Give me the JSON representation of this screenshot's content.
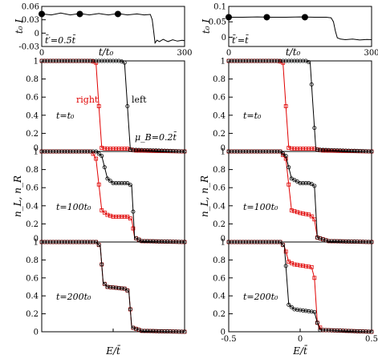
{
  "chart_data": [
    {
      "id": "top-left",
      "type": "line",
      "ylabel": "t₀ I",
      "xlabel": "t/t₀",
      "xlim": [
        0,
        300
      ],
      "ylim": [
        -0.03,
        0.06
      ],
      "xticks": [
        "0",
        "300"
      ],
      "yticks": [
        "0.06",
        "0.03",
        "0",
        "-0.03"
      ],
      "annotation": "t̄′=0.5t̄",
      "series": [
        {
          "line": [
            [
              0,
              0.043
            ],
            [
              20,
              0.041
            ],
            [
              40,
              0.045
            ],
            [
              60,
              0.041
            ],
            [
              80,
              0.044
            ],
            [
              100,
              0.041
            ],
            [
              120,
              0.044
            ],
            [
              140,
              0.041
            ],
            [
              160,
              0.044
            ],
            [
              180,
              0.041
            ],
            [
              200,
              0.043
            ],
            [
              215,
              0.041
            ],
            [
              228,
              0.042
            ],
            [
              232,
              0.03
            ],
            [
              235,
              0.005
            ],
            [
              238,
              -0.022
            ],
            [
              242,
              -0.016
            ],
            [
              247,
              -0.019
            ],
            [
              255,
              -0.014
            ],
            [
              265,
              -0.019
            ],
            [
              275,
              -0.015
            ],
            [
              285,
              -0.018
            ],
            [
              295,
              -0.016
            ],
            [
              300,
              -0.017
            ]
          ],
          "markers": [
            [
              0,
              0.043
            ],
            [
              80,
              0.043
            ],
            [
              160,
              0.043
            ]
          ]
        }
      ]
    },
    {
      "id": "top-right",
      "type": "line",
      "ylabel": "t₀ I",
      "xlabel": "t/t₀",
      "xlim": [
        0,
        300
      ],
      "ylim": [
        -0.03,
        0.1
      ],
      "xticks": [
        "0",
        "300"
      ],
      "yticks": [
        "0.1",
        "0.05",
        "0"
      ],
      "annotation": "t̄′=t̄",
      "series": [
        {
          "line": [
            [
              0,
              0.065
            ],
            [
              30,
              0.065
            ],
            [
              60,
              0.066
            ],
            [
              90,
              0.065
            ],
            [
              120,
              0.065
            ],
            [
              150,
              0.066
            ],
            [
              180,
              0.065
            ],
            [
              205,
              0.065
            ],
            [
              215,
              0.063
            ],
            [
              220,
              0.05
            ],
            [
              224,
              0.02
            ],
            [
              228,
              -0.002
            ],
            [
              235,
              -0.006
            ],
            [
              245,
              -0.008
            ],
            [
              260,
              -0.006
            ],
            [
              275,
              -0.009
            ],
            [
              290,
              -0.007
            ],
            [
              300,
              -0.008
            ]
          ],
          "markers": [
            [
              0,
              0.065
            ],
            [
              80,
              0.065
            ],
            [
              160,
              0.065
            ]
          ]
        }
      ]
    },
    {
      "id": "left-main",
      "type": "line",
      "ylabel": "n_L, n_R",
      "xlabel": "E/t̄",
      "xlim": [
        -0.5,
        0.5
      ],
      "subplots": [
        {
          "annotation": "t=t₀",
          "left": [
            [
              -0.5,
              1
            ],
            [
              0.05,
              1
            ],
            [
              0.08,
              0.98
            ],
            [
              0.1,
              0.5
            ],
            [
              0.12,
              0.02
            ],
            [
              0.5,
              0
            ]
          ],
          "right": [
            [
              -0.5,
              1
            ],
            [
              -0.15,
              1
            ],
            [
              -0.12,
              0.98
            ],
            [
              -0.1,
              0.5
            ],
            [
              -0.08,
              0.04
            ],
            [
              -0.05,
              0.03
            ],
            [
              0.1,
              0.03
            ],
            [
              0.15,
              0.01
            ],
            [
              0.5,
              0
            ]
          ]
        },
        {
          "annotation": "t=100t₀",
          "left": [
            [
              -0.5,
              1
            ],
            [
              -0.12,
              1
            ],
            [
              -0.08,
              0.95
            ],
            [
              -0.04,
              0.7
            ],
            [
              0.0,
              0.65
            ],
            [
              0.1,
              0.65
            ],
            [
              0.13,
              0.62
            ],
            [
              0.15,
              0.05
            ],
            [
              0.2,
              0.01
            ],
            [
              0.5,
              0
            ]
          ],
          "right": [
            [
              -0.5,
              1
            ],
            [
              -0.15,
              1
            ],
            [
              -0.12,
              0.92
            ],
            [
              -0.08,
              0.35
            ],
            [
              -0.04,
              0.3
            ],
            [
              0.0,
              0.28
            ],
            [
              0.1,
              0.28
            ],
            [
              0.13,
              0.25
            ],
            [
              0.15,
              0.05
            ],
            [
              0.2,
              0.01
            ],
            [
              0.5,
              0
            ]
          ]
        },
        {
          "annotation": "t=200t₀",
          "left": [
            [
              -0.5,
              1
            ],
            [
              -0.12,
              1
            ],
            [
              -0.09,
              0.95
            ],
            [
              -0.07,
              0.55
            ],
            [
              -0.04,
              0.5
            ],
            [
              0.08,
              0.48
            ],
            [
              0.11,
              0.45
            ],
            [
              0.13,
              0.05
            ],
            [
              0.2,
              0.01
            ],
            [
              0.5,
              0
            ]
          ],
          "right": [
            [
              -0.5,
              1
            ],
            [
              -0.12,
              1
            ],
            [
              -0.09,
              0.95
            ],
            [
              -0.07,
              0.55
            ],
            [
              -0.04,
              0.5
            ],
            [
              0.08,
              0.48
            ],
            [
              0.11,
              0.45
            ],
            [
              0.13,
              0.05
            ],
            [
              0.2,
              0.01
            ],
            [
              0.5,
              0
            ]
          ]
        }
      ],
      "labels": {
        "right": "right",
        "left": "left",
        "muB": "μ_B=0.2t̄"
      },
      "yticks": [
        "0",
        "0.2",
        "0.4",
        "0.6",
        "0.8",
        "1"
      ]
    },
    {
      "id": "right-main",
      "type": "line",
      "ylabel": "n_L, n_R",
      "xlabel": "E/t̄",
      "xlim": [
        -0.5,
        0.5
      ],
      "xticks": [
        "-0.5",
        "0",
        "0.5"
      ],
      "subplots": [
        {
          "annotation": "t=t₀",
          "left": [
            [
              -0.5,
              1
            ],
            [
              0.04,
              1
            ],
            [
              0.07,
              0.98
            ],
            [
              0.09,
              0.5
            ],
            [
              0.11,
              0.02
            ],
            [
              0.5,
              0
            ]
          ],
          "right": [
            [
              -0.5,
              1
            ],
            [
              -0.15,
              1
            ],
            [
              -0.12,
              0.98
            ],
            [
              -0.1,
              0.5
            ],
            [
              -0.08,
              0.04
            ],
            [
              -0.05,
              0.03
            ],
            [
              0.1,
              0.03
            ],
            [
              0.15,
              0.01
            ],
            [
              0.5,
              0
            ]
          ]
        },
        {
          "annotation": "t=100t₀",
          "left": [
            [
              -0.5,
              1
            ],
            [
              -0.14,
              1
            ],
            [
              -0.1,
              0.95
            ],
            [
              -0.06,
              0.7
            ],
            [
              0.0,
              0.65
            ],
            [
              0.07,
              0.65
            ],
            [
              0.1,
              0.62
            ],
            [
              0.12,
              0.05
            ],
            [
              0.2,
              0.01
            ],
            [
              0.5,
              0
            ]
          ],
          "right": [
            [
              -0.5,
              1
            ],
            [
              -0.14,
              1
            ],
            [
              -0.1,
              0.92
            ],
            [
              -0.06,
              0.35
            ],
            [
              0.0,
              0.32
            ],
            [
              0.07,
              0.3
            ],
            [
              0.1,
              0.25
            ],
            [
              0.12,
              0.05
            ],
            [
              0.2,
              0.01
            ],
            [
              0.5,
              0
            ]
          ]
        },
        {
          "annotation": "t=200t₀",
          "left": [
            [
              -0.5,
              1
            ],
            [
              -0.14,
              1
            ],
            [
              -0.11,
              0.95
            ],
            [
              -0.08,
              0.3
            ],
            [
              -0.04,
              0.25
            ],
            [
              0.1,
              0.22
            ],
            [
              0.12,
              0.1
            ],
            [
              0.14,
              0.02
            ],
            [
              0.5,
              0
            ]
          ],
          "right": [
            [
              -0.5,
              1
            ],
            [
              -0.14,
              1
            ],
            [
              -0.11,
              0.95
            ],
            [
              -0.08,
              0.78
            ],
            [
              -0.04,
              0.75
            ],
            [
              0.08,
              0.72
            ],
            [
              0.1,
              0.6
            ],
            [
              0.12,
              0.1
            ],
            [
              0.15,
              0.02
            ],
            [
              0.5,
              0
            ]
          ]
        }
      ],
      "yticks": [
        "0",
        "0.2",
        "0.4",
        "0.6",
        "0.8",
        "1"
      ]
    }
  ],
  "colors": {
    "left": "#000000",
    "right": "#e00000"
  }
}
